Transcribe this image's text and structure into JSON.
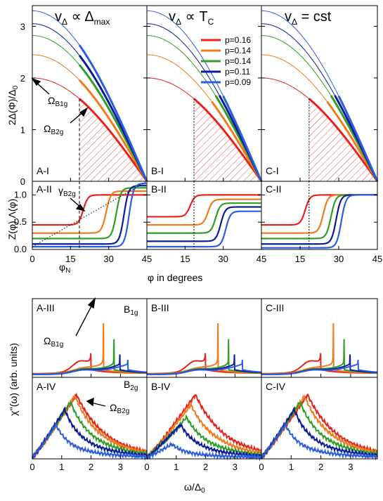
{
  "colors": {
    "p_0_16": "#e8221b",
    "p_0_14_orange": "#f07b1c",
    "p_0_14_green": "#2e9e27",
    "p_0_11": "#0b1d96",
    "p_0_09": "#2d5de0"
  },
  "top_titles": [
    "vΔ ∝ Δmax",
    "vΔ ∝ TC",
    "vΔ = cst"
  ],
  "top_ylabel": "2Δ(Φ)/Δ0",
  "mid_ylabel": "Z(φ).Λ(φ)",
  "top_xlabel": "φ in degrees",
  "bottom_ylabel": "χ''(ω) (arb. units)",
  "bottom_xlabel": "ω/Δ0",
  "phi_n_label": "φN",
  "annotations": {
    "omega_b1g": "ΩB1g",
    "omega_b2g": "ΩB2g",
    "gamma_b2g": "γB2g",
    "b1g": "B1g",
    "b2g": "B2g"
  },
  "panel_labels": {
    "row1": [
      "A-I",
      "B-I",
      "C-I"
    ],
    "row2": [
      "A-II",
      "B-II",
      "C-II"
    ],
    "row3": [
      "A-III",
      "B-III",
      "C-III"
    ],
    "row4": [
      "A-IV",
      "B-IV",
      "C-IV"
    ]
  },
  "chart_data": [
    {
      "type": "line",
      "panel": "gap vs angle (A-I, B-I, C-I)",
      "xlabel": "φ in degrees",
      "ylabel": "2Δ(Φ)/Δ0",
      "xlim": [
        0,
        45
      ],
      "ylim": [
        0,
        3.4
      ],
      "xticks": [
        0,
        15,
        30,
        45
      ],
      "yticks": [
        0,
        1,
        2,
        3
      ],
      "x": [
        0,
        5,
        10,
        15,
        20,
        25,
        30,
        35,
        40,
        45
      ],
      "legend_position": "top-right of panel B-I",
      "series": [
        {
          "name": "p=0.16",
          "values": [
            2.0,
            1.97,
            1.88,
            1.73,
            1.53,
            1.29,
            1.0,
            0.68,
            0.35,
            0.0
          ]
        },
        {
          "name": "p=0.14",
          "values": [
            2.45,
            2.41,
            2.3,
            2.12,
            1.88,
            1.57,
            1.23,
            0.84,
            0.43,
            0.0
          ]
        },
        {
          "name": "p=0.14",
          "values": [
            2.82,
            2.78,
            2.65,
            2.44,
            2.16,
            1.81,
            1.41,
            0.96,
            0.49,
            0.0
          ]
        },
        {
          "name": "p=0.11",
          "values": [
            3.05,
            3.0,
            2.87,
            2.64,
            2.34,
            1.96,
            1.53,
            1.04,
            0.53,
            0.0
          ]
        },
        {
          "name": "p=0.09",
          "values": [
            3.3,
            3.25,
            3.1,
            2.86,
            2.53,
            2.12,
            1.65,
            1.13,
            0.57,
            0.0
          ]
        }
      ],
      "hatched_region_start_phi": 18.5
    },
    {
      "type": "line",
      "panel": "Z.Λ vs angle (A-II, B-II, C-II)",
      "xlabel": "φ in degrees",
      "ylabel": "Z(φ).Λ(φ)",
      "xlim": [
        0,
        45
      ],
      "ylim": [
        0,
        1.25
      ],
      "xticks": [
        0,
        15,
        30,
        45
      ],
      "yticks": [
        0.0,
        0.5,
        1.0
      ],
      "steps": {
        "A-II": [
          {
            "name": "p=0.16",
            "low": 0.45,
            "high": 1.0,
            "phi_step": 20
          },
          {
            "name": "p=0.14",
            "low": 0.3,
            "high": 1.07,
            "phi_step": 29
          },
          {
            "name": "p=0.14",
            "low": 0.2,
            "high": 1.13,
            "phi_step": 33
          },
          {
            "name": "p=0.11",
            "low": 0.1,
            "high": 1.17,
            "phi_step": 36
          },
          {
            "name": "p=0.09",
            "low": 0.05,
            "high": 1.21,
            "phi_step": 38
          }
        ],
        "B-II": [
          {
            "name": "p=0.16",
            "low": 0.6,
            "high": 1.0,
            "phi_step": 17
          },
          {
            "name": "p=0.14",
            "low": 0.45,
            "high": 0.92,
            "phi_step": 24
          },
          {
            "name": "p=0.14",
            "low": 0.3,
            "high": 0.85,
            "phi_step": 27
          },
          {
            "name": "p=0.11",
            "low": 0.15,
            "high": 0.78,
            "phi_step": 29
          },
          {
            "name": "p=0.09",
            "low": 0.05,
            "high": 0.7,
            "phi_step": 31
          }
        ],
        "C-II": [
          {
            "name": "p=0.16",
            "low": 0.45,
            "high": 1.0,
            "phi_step": 17
          },
          {
            "name": "p=0.14",
            "low": 0.3,
            "high": 1.0,
            "phi_step": 24
          },
          {
            "name": "p=0.14",
            "low": 0.2,
            "high": 1.0,
            "phi_step": 27
          },
          {
            "name": "p=0.11",
            "low": 0.1,
            "high": 1.0,
            "phi_step": 29
          },
          {
            "name": "p=0.09",
            "low": 0.03,
            "high": 1.0,
            "phi_step": 31
          }
        ]
      }
    },
    {
      "type": "line",
      "panel": "B1g Raman response (A-III, B-III, C-III)",
      "xlabel": "ω/Δ0",
      "ylabel": "χ''(ω) (arb. units)",
      "xlim": [
        0,
        3.9
      ],
      "xticks": [
        0,
        1,
        2,
        3
      ],
      "peak_positions": {
        "A-III": [
          2.0,
          2.42,
          2.78,
          2.98,
          3.25
        ],
        "B-III": [
          2.0,
          2.42,
          2.78,
          2.98,
          3.25
        ],
        "C-III": [
          2.0,
          2.42,
          2.78,
          2.98,
          3.25
        ]
      },
      "series_names": [
        "p=0.16",
        "p=0.14",
        "p=0.14",
        "p=0.11",
        "p=0.09"
      ]
    },
    {
      "type": "line",
      "panel": "B2g Raman response (A-IV, B-IV, C-IV)",
      "xlabel": "ω/Δ0",
      "ylabel": "χ''(ω) (arb. units)",
      "xlim": [
        0,
        3.9
      ],
      "xticks": [
        0,
        1,
        2,
        3
      ],
      "peak_positions": {
        "A-IV": [
          1.5,
          1.45,
          1.3,
          1.1,
          0.8
        ],
        "B-IV": [
          1.65,
          1.5,
          1.35,
          1.15,
          0.85
        ],
        "C-IV": [
          1.55,
          1.45,
          1.3,
          1.1,
          0.8
        ]
      },
      "series_names": [
        "p=0.16",
        "p=0.14",
        "p=0.14",
        "p=0.11",
        "p=0.09"
      ]
    }
  ]
}
